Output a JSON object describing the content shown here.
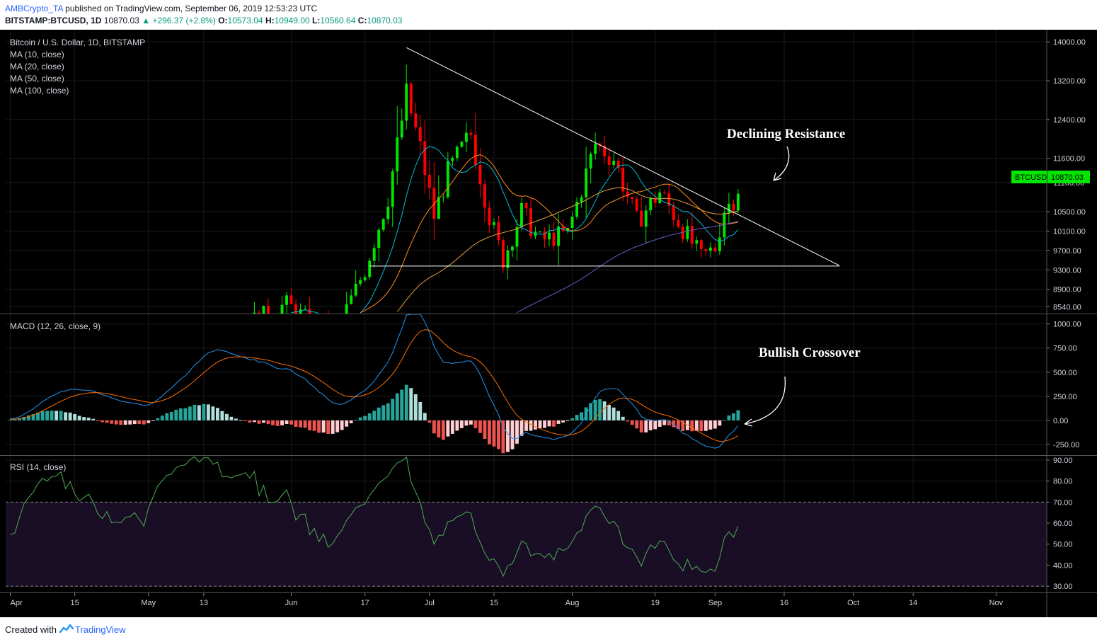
{
  "header": {
    "author": "AMBCrypto_TA",
    "published_text": "published on TradingView.com, September 06, 2019 12:53:23 UTC",
    "symbol": "BITSTAMP:BTCUSD, 1D",
    "last": "10870.03",
    "change_arrow": "▲",
    "change": "+296.37 (+2.8%)",
    "o_label": "O:",
    "o_value": "10573.04",
    "h_label": "H:",
    "h_value": "10949.00",
    "l_label": "L:",
    "l_value": "10560.64",
    "c_label": "C:",
    "c_value": "10870.03"
  },
  "footer": {
    "created_with": "Created with",
    "brand": "TradingView"
  },
  "colors": {
    "background": "#000000",
    "up": "#00e600",
    "down": "#ff0000",
    "grid": "#1a1a1a",
    "ma10": "#00bcd4",
    "ma20": "#ff8c1a",
    "ma50": "#e6a23c",
    "ma100": "#6a5acd",
    "macd_line": "#2196f3",
    "signal_line": "#ff6d00",
    "rsi_line": "#4caf50",
    "rsi_band": "#1a0d26",
    "price_tag": "#00e600"
  },
  "chart_data": [
    {
      "type": "candlestick",
      "title": "Bitcoin / U.S. Dollar, 1D, BITSTAMP",
      "legend": [
        "MA (10, close)",
        "MA (20, close)",
        "MA (50, close)",
        "MA (100, close)"
      ],
      "y_ticks": [
        14000,
        13200,
        12400,
        11600,
        11100,
        10500,
        10100,
        9700,
        9300,
        8900,
        8540
      ],
      "y_tick_labels": [
        "14000.00",
        "13200.00",
        "12400.00",
        "11600.00",
        "11100.00",
        "10500.00",
        "10100.00",
        "9700.00",
        "9300.00",
        "8900.00",
        "8540.00"
      ],
      "ylim": [
        8400,
        14250
      ],
      "last_price_tag": {
        "symbol": "BTCUSD",
        "value": "10870.03"
      },
      "annotation": "Declining Resistance",
      "resistance_line": {
        "from": [
          "2019-06-26",
          13880
        ],
        "to": [
          "2019-09-28",
          9390
        ]
      },
      "support_line": {
        "from": [
          "2019-06-18",
          9380
        ],
        "to": [
          "2019-09-28",
          9380
        ]
      }
    },
    {
      "type": "line",
      "title": "MACD (12, 26, close, 9)",
      "series": [
        "MACD",
        "Signal",
        "Histogram"
      ],
      "y_ticks": [
        1000,
        750,
        500,
        250,
        0,
        -250
      ],
      "y_tick_labels": [
        "1000.00",
        "750.00",
        "500.00",
        "250.00",
        "0.00",
        "-250.00"
      ],
      "ylim": [
        -360,
        1100
      ],
      "annotation": "Bullish Crossover"
    },
    {
      "type": "line",
      "title": "RSI (14, close)",
      "y_ticks": [
        90,
        80,
        70,
        60,
        50,
        40,
        30
      ],
      "y_tick_labels": [
        "90.00",
        "80.00",
        "70.00",
        "60.00",
        "50.00",
        "40.00",
        "30.00"
      ],
      "ylim": [
        27,
        92
      ],
      "bands": [
        30,
        70
      ]
    },
    {
      "type": "time_axis",
      "x_labels": [
        {
          "date": "2019-04-01",
          "label": "Apr"
        },
        {
          "date": "2019-04-15",
          "label": "15"
        },
        {
          "date": "2019-05-01",
          "label": "May"
        },
        {
          "date": "2019-05-13",
          "label": "13"
        },
        {
          "date": "2019-06-01",
          "label": "Jun"
        },
        {
          "date": "2019-06-17",
          "label": "17"
        },
        {
          "date": "2019-07-01",
          "label": "Jul"
        },
        {
          "date": "2019-07-15",
          "label": "15"
        },
        {
          "date": "2019-08-01",
          "label": "Aug"
        },
        {
          "date": "2019-08-19",
          "label": "19"
        },
        {
          "date": "2019-09-01",
          "label": "Sep"
        },
        {
          "date": "2019-09-16",
          "label": "16"
        },
        {
          "date": "2019-10-01",
          "label": "Oct"
        },
        {
          "date": "2019-10-14",
          "label": "14"
        },
        {
          "date": "2019-11-01",
          "label": "Nov"
        }
      ],
      "xlim": [
        "2019-03-31",
        "2019-11-12"
      ]
    }
  ]
}
